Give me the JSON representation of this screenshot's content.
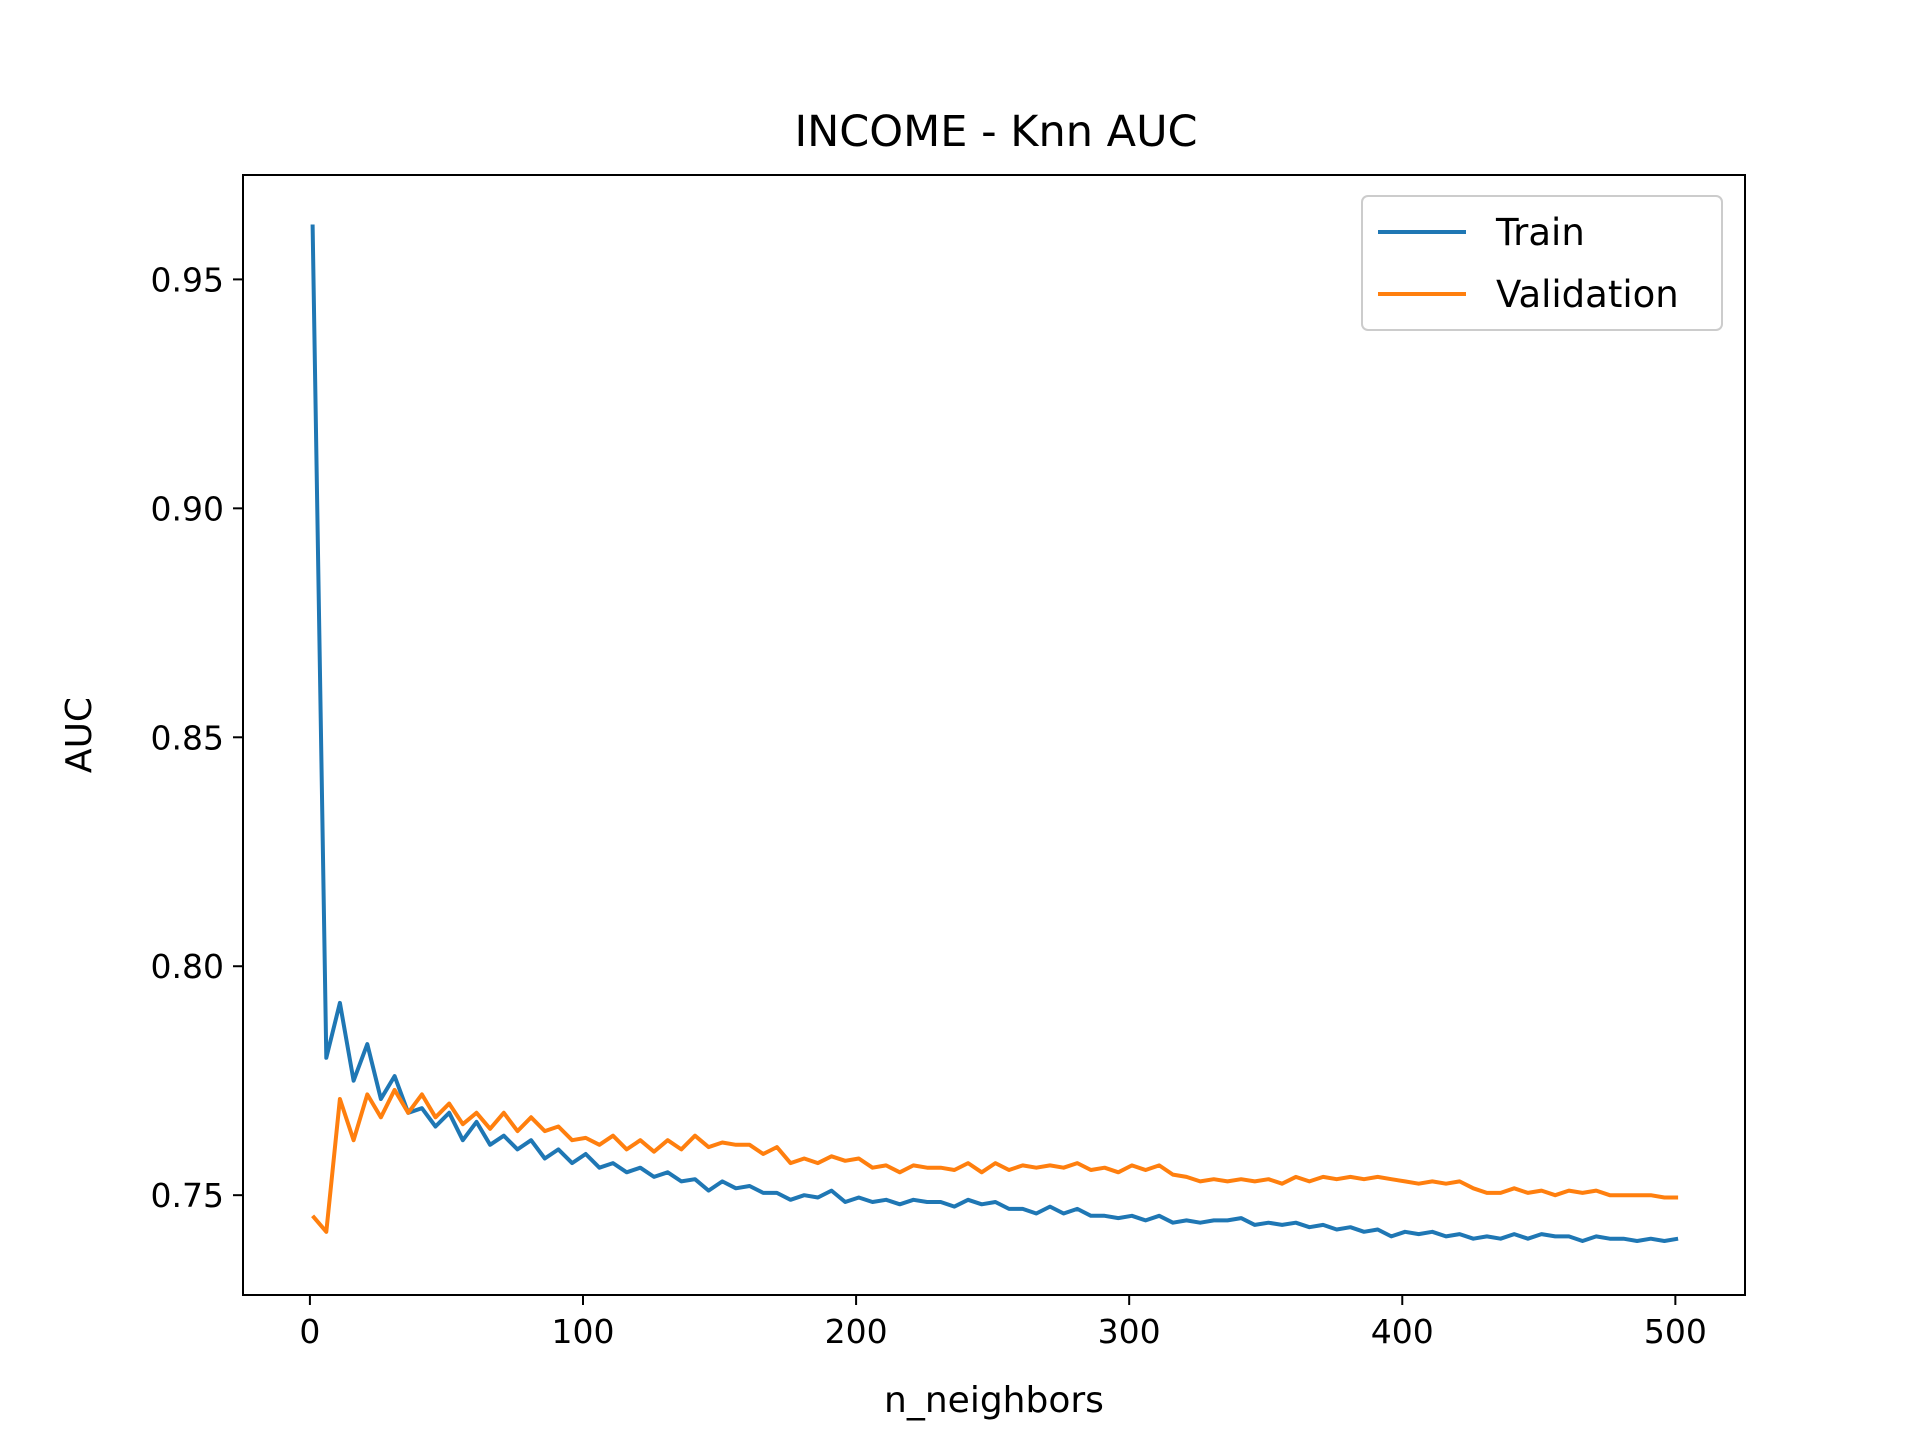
{
  "chart_data": {
    "type": "line",
    "title": "INCOME - Knn AUC",
    "xlabel": "n_neighbors",
    "ylabel": "AUC",
    "xlim": [
      -24.5,
      525.5
    ],
    "ylim": [
      0.7282,
      0.9728
    ],
    "xticks": [
      0,
      100,
      200,
      300,
      400,
      500
    ],
    "xtick_labels": [
      "0",
      "100",
      "200",
      "300",
      "400",
      "500"
    ],
    "yticks": [
      0.75,
      0.8,
      0.85,
      0.9,
      0.95
    ],
    "ytick_labels": [
      "0.75",
      "0.80",
      "0.85",
      "0.90",
      "0.95"
    ],
    "grid": false,
    "legend_position": "top-right",
    "x": [
      1,
      6,
      11,
      16,
      21,
      26,
      31,
      36,
      41,
      46,
      51,
      56,
      61,
      66,
      71,
      76,
      81,
      86,
      91,
      96,
      101,
      106,
      111,
      116,
      121,
      126,
      131,
      136,
      141,
      146,
      151,
      156,
      161,
      166,
      171,
      176,
      181,
      186,
      191,
      196,
      201,
      206,
      211,
      216,
      221,
      226,
      231,
      236,
      241,
      246,
      251,
      256,
      261,
      266,
      271,
      276,
      281,
      286,
      291,
      296,
      301,
      306,
      311,
      316,
      321,
      326,
      331,
      336,
      341,
      346,
      351,
      356,
      361,
      366,
      371,
      376,
      381,
      386,
      391,
      396,
      401,
      406,
      411,
      416,
      421,
      426,
      431,
      436,
      441,
      446,
      451,
      456,
      461,
      466,
      471,
      476,
      481,
      486,
      491,
      496,
      501
    ],
    "series": [
      {
        "name": "Train",
        "color": "#1f77b4",
        "values": [
          0.962,
          0.78,
          0.792,
          0.775,
          0.783,
          0.771,
          0.776,
          0.768,
          0.769,
          0.765,
          0.768,
          0.762,
          0.766,
          0.761,
          0.763,
          0.76,
          0.762,
          0.758,
          0.76,
          0.757,
          0.759,
          0.756,
          0.757,
          0.755,
          0.756,
          0.754,
          0.755,
          0.753,
          0.7535,
          0.751,
          0.753,
          0.7515,
          0.752,
          0.7505,
          0.7505,
          0.749,
          0.75,
          0.7495,
          0.751,
          0.7485,
          0.7495,
          0.7485,
          0.749,
          0.748,
          0.749,
          0.7485,
          0.7485,
          0.7475,
          0.749,
          0.748,
          0.7485,
          0.747,
          0.747,
          0.746,
          0.7475,
          0.746,
          0.747,
          0.7455,
          0.7455,
          0.745,
          0.7455,
          0.7445,
          0.7455,
          0.744,
          0.7445,
          0.744,
          0.7445,
          0.7445,
          0.745,
          0.7435,
          0.744,
          0.7435,
          0.744,
          0.743,
          0.7435,
          0.7425,
          0.743,
          0.742,
          0.7425,
          0.741,
          0.742,
          0.7415,
          0.742,
          0.741,
          0.7415,
          0.7405,
          0.741,
          0.7405,
          0.7415,
          0.7405,
          0.7415,
          0.741,
          0.741,
          0.74,
          0.741,
          0.7405,
          0.7405,
          0.74,
          0.7405,
          0.74,
          0.7405
        ]
      },
      {
        "name": "Validation",
        "color": "#ff7f0e",
        "values": [
          0.7455,
          0.742,
          0.771,
          0.762,
          0.772,
          0.767,
          0.773,
          0.768,
          0.772,
          0.767,
          0.77,
          0.7655,
          0.768,
          0.7645,
          0.768,
          0.764,
          0.767,
          0.764,
          0.765,
          0.762,
          0.7625,
          0.761,
          0.763,
          0.76,
          0.762,
          0.7595,
          0.762,
          0.76,
          0.763,
          0.7605,
          0.7615,
          0.761,
          0.761,
          0.759,
          0.7605,
          0.757,
          0.758,
          0.757,
          0.7585,
          0.7575,
          0.758,
          0.756,
          0.7565,
          0.755,
          0.7565,
          0.756,
          0.756,
          0.7555,
          0.757,
          0.755,
          0.757,
          0.7555,
          0.7565,
          0.756,
          0.7565,
          0.756,
          0.757,
          0.7555,
          0.756,
          0.755,
          0.7565,
          0.7555,
          0.7565,
          0.7545,
          0.754,
          0.753,
          0.7535,
          0.753,
          0.7535,
          0.753,
          0.7535,
          0.7525,
          0.754,
          0.753,
          0.754,
          0.7535,
          0.754,
          0.7535,
          0.754,
          0.7535,
          0.753,
          0.7525,
          0.753,
          0.7525,
          0.753,
          0.7515,
          0.7505,
          0.7505,
          0.7515,
          0.7505,
          0.751,
          0.75,
          0.751,
          0.7505,
          0.751,
          0.75,
          0.75,
          0.75,
          0.75,
          0.7495,
          0.7495
        ]
      }
    ]
  }
}
